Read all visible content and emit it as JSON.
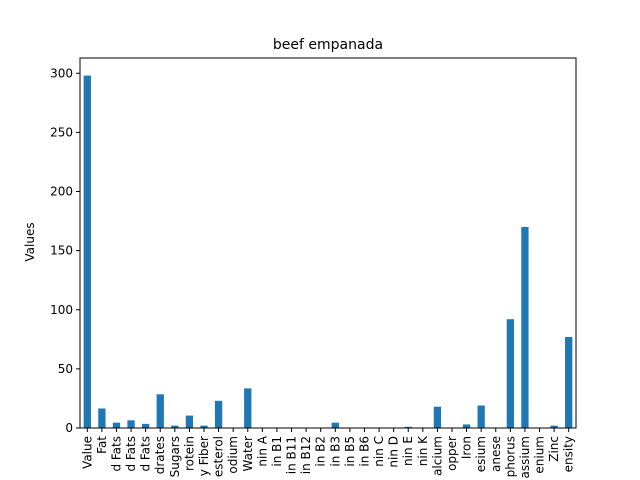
{
  "chart_data": {
    "type": "bar",
    "title": "beef empanada",
    "xlabel": "",
    "ylabel": "Values",
    "ylim": [
      0,
      312.9
    ],
    "yticks": [
      0,
      50,
      100,
      150,
      200,
      250,
      300
    ],
    "grid": false,
    "legend": "none",
    "bar_color": "#1f77b4",
    "categories": [
      "Value",
      "Fat",
      "d Fats",
      "d Fats",
      "d Fats",
      "drates",
      "Sugars",
      "rotein",
      "y Fiber",
      "esterol",
      "odium",
      "Water",
      "nin A",
      "in B1",
      "in B11",
      "in B12",
      "in B2",
      "in B3",
      "in B5",
      "in B6",
      "nin C",
      "nin D",
      "nin E",
      "nin K",
      "alcium",
      "opper",
      "Iron",
      "esium",
      "anese",
      "phorus",
      "assium",
      "enium",
      "Zinc",
      "ensity"
    ],
    "values": [
      298,
      16.5,
      4.5,
      6.5,
      3.5,
      28.5,
      2,
      10.5,
      2,
      23,
      0,
      33.5,
      0,
      0,
      0,
      0,
      0,
      4.5,
      0,
      0,
      0,
      0,
      1,
      0,
      18,
      0,
      3,
      19,
      0,
      92,
      170,
      0,
      2,
      77
    ]
  }
}
